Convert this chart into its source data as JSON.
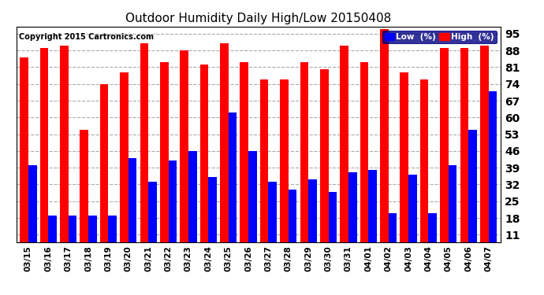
{
  "title": "Outdoor Humidity Daily High/Low 20150408",
  "copyright": "Copyright 2015 Cartronics.com",
  "dates": [
    "03/15",
    "03/16",
    "03/17",
    "03/18",
    "03/19",
    "03/20",
    "03/21",
    "03/22",
    "03/23",
    "03/24",
    "03/25",
    "03/26",
    "03/27",
    "03/28",
    "03/29",
    "03/30",
    "03/31",
    "04/01",
    "04/02",
    "04/03",
    "04/04",
    "04/05",
    "04/06",
    "04/07"
  ],
  "high_values": [
    85,
    89,
    90,
    55,
    74,
    79,
    91,
    83,
    88,
    82,
    91,
    83,
    76,
    76,
    83,
    80,
    90,
    83,
    97,
    79,
    76,
    89,
    89,
    90
  ],
  "low_values": [
    40,
    19,
    19,
    19,
    19,
    43,
    33,
    42,
    46,
    35,
    62,
    46,
    33,
    30,
    34,
    29,
    37,
    38,
    20,
    36,
    20,
    40,
    55,
    71
  ],
  "high_color": "#ff0000",
  "low_color": "#0000ff",
  "bg_color": "#ffffff",
  "plot_bg_color": "#ffffff",
  "grid_color": "#aaaaaa",
  "yticks": [
    11,
    18,
    25,
    32,
    39,
    46,
    53,
    60,
    67,
    74,
    81,
    88,
    95
  ],
  "ymin": 8,
  "ymax": 98,
  "bar_width": 0.42,
  "legend_low_label": "Low  (%)",
  "legend_high_label": "High  (%)"
}
